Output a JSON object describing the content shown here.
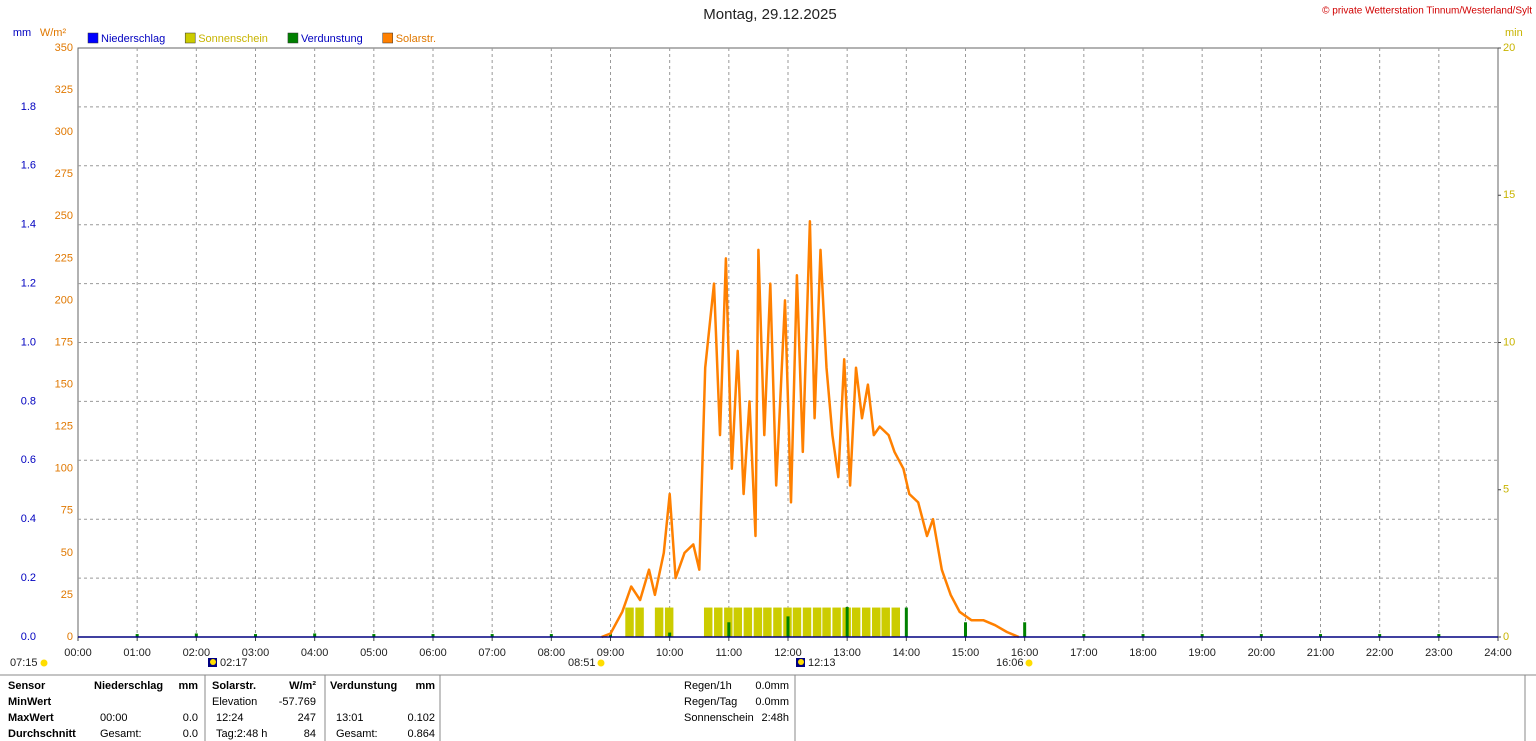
{
  "chart_data": {
    "type": "line",
    "title": "Montag, 29.12.2025",
    "credit": "© private Wetterstation Tinnum/Westerland/Sylt",
    "xlim": [
      0,
      24
    ],
    "xticks": [
      {
        "value": 0,
        "label": "00:00"
      },
      {
        "value": 1,
        "label": "01:00"
      },
      {
        "value": 2,
        "label": "02:00"
      },
      {
        "value": 3,
        "label": "03:00"
      },
      {
        "value": 4,
        "label": "04:00"
      },
      {
        "value": 5,
        "label": "05:00"
      },
      {
        "value": 6,
        "label": "06:00"
      },
      {
        "value": 7,
        "label": "07:00"
      },
      {
        "value": 8,
        "label": "08:00"
      },
      {
        "value": 9,
        "label": "09:00"
      },
      {
        "value": 10,
        "label": "10:00"
      },
      {
        "value": 11,
        "label": "11:00"
      },
      {
        "value": 12,
        "label": "12:00"
      },
      {
        "value": 13,
        "label": "13:00"
      },
      {
        "value": 14,
        "label": "14:00"
      },
      {
        "value": 15,
        "label": "15:00"
      },
      {
        "value": 16,
        "label": "16:00"
      },
      {
        "value": 17,
        "label": "17:00"
      },
      {
        "value": 18,
        "label": "18:00"
      },
      {
        "value": 19,
        "label": "19:00"
      },
      {
        "value": 20,
        "label": "20:00"
      },
      {
        "value": 21,
        "label": "21:00"
      },
      {
        "value": 22,
        "label": "22:00"
      },
      {
        "value": 23,
        "label": "23:00"
      },
      {
        "value": 24,
        "label": "24:00"
      }
    ],
    "grid": true,
    "yaxes": [
      {
        "label": "mm",
        "color": "#0000c0",
        "lim": [
          0,
          2
        ],
        "ticks": [
          {
            "value": 0,
            "label": "0.0"
          },
          {
            "value": 0.2,
            "label": "0.2"
          },
          {
            "value": 0.4,
            "label": "0.4"
          },
          {
            "value": 0.6,
            "label": "0.6"
          },
          {
            "value": 0.8,
            "label": "0.8"
          },
          {
            "value": 1,
            "label": "1.0"
          },
          {
            "value": 1.2,
            "label": "1.2"
          },
          {
            "value": 1.4,
            "label": "1.4"
          },
          {
            "value": 1.6,
            "label": "1.6"
          },
          {
            "value": 1.8,
            "label": "1.8"
          }
        ]
      },
      {
        "label": "W/m²",
        "color": "#e07800",
        "lim": [
          0,
          350
        ],
        "ticks": [
          0,
          25,
          50,
          75,
          100,
          125,
          150,
          175,
          200,
          225,
          250,
          275,
          300,
          325,
          350
        ]
      },
      {
        "label": "min",
        "color": "#c8b400",
        "lim": [
          0,
          20
        ],
        "ticks": [
          0,
          5,
          10,
          15,
          20
        ]
      }
    ],
    "series": [
      {
        "name": "Niederschlag",
        "type": "bar",
        "axis": 0,
        "color": "#0000ff",
        "x": [],
        "values": []
      },
      {
        "name": "Sonnenschein",
        "type": "bar",
        "axis": 2,
        "color": "#cccc00",
        "x": [
          9.25,
          9.42,
          9.75,
          9.92,
          10.58,
          10.75,
          10.92,
          11.08,
          11.25,
          11.42,
          11.58,
          11.75,
          11.92,
          12.08,
          12.25,
          12.42,
          12.58,
          12.75,
          12.92,
          13.08,
          13.25,
          13.42,
          13.58,
          13.75
        ],
        "values": [
          1,
          1,
          1,
          1,
          1,
          1,
          1,
          1,
          1,
          1,
          1,
          1,
          1,
          1,
          1,
          1,
          1,
          1,
          1,
          1,
          1,
          1,
          1,
          1
        ]
      },
      {
        "name": "Verdunstung",
        "type": "spike",
        "axis": 0,
        "color": "#008000",
        "x": [
          1,
          2,
          3,
          4,
          5,
          6,
          7,
          8,
          9,
          10,
          11,
          12,
          13,
          14,
          15,
          16,
          17,
          18,
          19,
          20,
          21,
          22,
          23
        ],
        "values": [
          0.01,
          0.012,
          0.01,
          0.012,
          0.01,
          0.01,
          0.01,
          0.01,
          0.012,
          0.015,
          0.05,
          0.07,
          0.102,
          0.1,
          0.05,
          0.05,
          0.01,
          0.01,
          0.01,
          0.01,
          0.01,
          0.01,
          0.01
        ]
      },
      {
        "name": "Solarstr.",
        "type": "line",
        "axis": 1,
        "color": "#ff8000",
        "x": [
          8.85,
          9.0,
          9.2,
          9.35,
          9.5,
          9.65,
          9.75,
          9.9,
          10.0,
          10.1,
          10.25,
          10.4,
          10.5,
          10.6,
          10.75,
          10.85,
          10.95,
          11.05,
          11.15,
          11.25,
          11.35,
          11.45,
          11.5,
          11.6,
          11.7,
          11.8,
          11.95,
          12.05,
          12.15,
          12.25,
          12.37,
          12.45,
          12.55,
          12.65,
          12.75,
          12.85,
          12.95,
          13.05,
          13.15,
          13.25,
          13.35,
          13.45,
          13.55,
          13.7,
          13.8,
          13.95,
          14.05,
          14.2,
          14.35,
          14.45,
          14.6,
          14.75,
          14.9,
          15.1,
          15.3,
          15.5,
          15.7,
          15.9
        ],
        "values": [
          0,
          2,
          15,
          30,
          22,
          40,
          25,
          50,
          85,
          35,
          50,
          55,
          40,
          160,
          210,
          120,
          225,
          100,
          170,
          85,
          140,
          60,
          230,
          120,
          210,
          90,
          200,
          80,
          215,
          110,
          247,
          130,
          230,
          160,
          120,
          95,
          165,
          90,
          160,
          130,
          150,
          120,
          125,
          120,
          110,
          100,
          85,
          80,
          60,
          70,
          40,
          25,
          15,
          10,
          10,
          7,
          3,
          0
        ]
      }
    ],
    "markers": [
      "07:15",
      "02:17",
      "08:51",
      "12:13",
      "16:06"
    ]
  },
  "stats": {
    "headers": [
      "Sensor",
      "Niederschlag",
      "mm",
      "Solarstr.",
      "W/m²",
      "Verdunstung",
      "mm"
    ],
    "rows": [
      [
        "MinWert",
        null,
        null,
        "Elevation",
        "-57.769",
        null,
        null
      ],
      [
        "MaxWert",
        "00:00",
        "0.0",
        "12:24",
        "247",
        "13:01",
        "0.102"
      ],
      [
        "Durchschnitt",
        "Gesamt:",
        "0.0",
        "Tag:2:48 h",
        "84",
        "Gesamt:",
        "0.864"
      ]
    ],
    "extra": [
      [
        "Regen/1h",
        "0.0mm"
      ],
      [
        "Regen/Tag",
        "0.0mm"
      ],
      [
        "Sonnenschein",
        "2:48h"
      ]
    ]
  }
}
